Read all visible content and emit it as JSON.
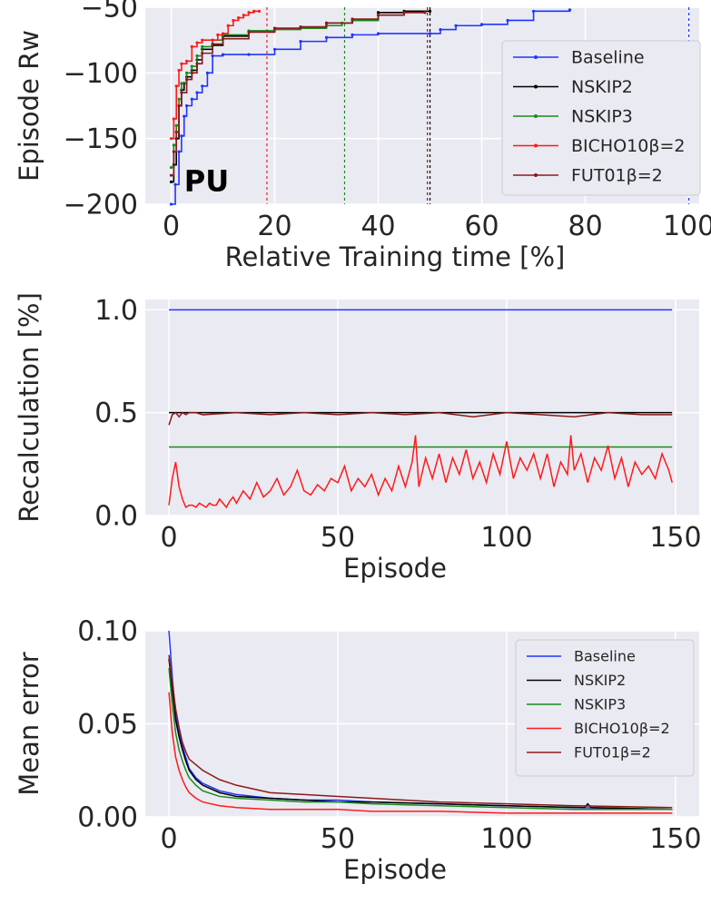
{
  "chart_data": [
    {
      "type": "line",
      "ylabel": "Episode Rw",
      "xlabel": "Relative Training time [%]",
      "annotation": "PU",
      "xlim": [
        -5,
        102
      ],
      "ylim": [
        -200,
        -50
      ],
      "xticks": [
        0,
        20,
        40,
        60,
        80,
        100
      ],
      "yticks": [
        -200,
        -150,
        -100,
        -50
      ],
      "grid": true,
      "legend_position": "right",
      "series": [
        {
          "name": "Baseline",
          "color": "#2035ff",
          "x": [
            0,
            0.8,
            1.5,
            2,
            2.5,
            3,
            4,
            5,
            6,
            7,
            8,
            10,
            15,
            20,
            25,
            30,
            35,
            40,
            50,
            52,
            55,
            60,
            65,
            70,
            77
          ],
          "y": [
            -200,
            -185,
            -160,
            -148,
            -133,
            -125,
            -120,
            -115,
            -110,
            -100,
            -87,
            -86,
            -86,
            -82,
            -76,
            -73,
            -71,
            -70,
            -70,
            -67,
            -64,
            -63,
            -60,
            -53,
            -52
          ],
          "end_marker_x": 100
        },
        {
          "name": "NSKIP2",
          "color": "#000000",
          "x": [
            0,
            0.5,
            1,
            1.5,
            2,
            2.5,
            3,
            4,
            5,
            6,
            8,
            10,
            15,
            20,
            25,
            30,
            35,
            40,
            45,
            50
          ],
          "y": [
            -183,
            -170,
            -150,
            -125,
            -113,
            -108,
            -103,
            -98,
            -90,
            -82,
            -79,
            -72,
            -68,
            -66,
            -65,
            -62,
            -60,
            -54,
            -53,
            -53
          ],
          "end_marker_x": 50
        },
        {
          "name": "NSKIP3",
          "color": "#1a8a1a",
          "x": [
            0,
            0.5,
            1,
            1.5,
            2,
            3,
            4,
            5,
            6,
            8,
            10,
            15,
            20,
            25,
            30,
            33,
            35,
            40,
            45,
            49
          ],
          "y": [
            -172,
            -155,
            -140,
            -120,
            -108,
            -100,
            -95,
            -87,
            -80,
            -75,
            -71,
            -68,
            -67,
            -66,
            -64,
            -62,
            -60,
            -56,
            -54,
            -54
          ],
          "end_marker_x": 33.5
        },
        {
          "name": "BICHO10β=2",
          "color": "#ff1a1a",
          "x": [
            0,
            0.5,
            1,
            1.5,
            2,
            3,
            4,
            5,
            6,
            8,
            9,
            10,
            11,
            12,
            13,
            14,
            15,
            16,
            17
          ],
          "y": [
            -150,
            -135,
            -110,
            -98,
            -93,
            -91,
            -80,
            -77,
            -75,
            -75,
            -71,
            -70,
            -64,
            -60,
            -58,
            -56,
            -54,
            -53,
            -53
          ],
          "end_marker_x": 18.5
        },
        {
          "name": "FUT01β=2",
          "color": "#8b1a1a",
          "x": [
            0,
            0.5,
            1,
            1.5,
            2,
            3,
            4,
            5,
            6,
            8,
            10,
            15,
            20,
            25,
            30,
            35,
            40,
            45,
            49
          ],
          "y": [
            -178,
            -160,
            -145,
            -125,
            -115,
            -105,
            -100,
            -93,
            -85,
            -78,
            -74,
            -69,
            -66,
            -65,
            -62,
            -59,
            -56,
            -54,
            -54
          ],
          "end_marker_x": 49.5
        }
      ]
    },
    {
      "type": "line",
      "ylabel": "Recalculation [%]",
      "xlabel": "Episode",
      "xlim": [
        -7,
        157
      ],
      "ylim": [
        0,
        1.05
      ],
      "xticks": [
        0,
        50,
        100,
        150
      ],
      "yticks": [
        0.0,
        0.5,
        1.0
      ],
      "ytick_labels": [
        "0.0",
        "0.5",
        "1.0"
      ],
      "grid": true,
      "series": [
        {
          "name": "Baseline",
          "color": "#2035ff",
          "constant": 1.0
        },
        {
          "name": "NSKIP2",
          "color": "#000000",
          "constant": 0.5
        },
        {
          "name": "NSKIP3",
          "color": "#1a8a1a",
          "constant": 0.333
        },
        {
          "name": "FUT01β=2",
          "color": "#8b1a1a",
          "x": [
            0,
            1,
            2,
            3,
            4,
            5,
            6,
            8,
            10,
            20,
            30,
            40,
            50,
            60,
            70,
            80,
            90,
            100,
            110,
            120,
            130,
            140,
            149
          ],
          "y": [
            0.44,
            0.49,
            0.5,
            0.48,
            0.5,
            0.49,
            0.5,
            0.5,
            0.49,
            0.5,
            0.49,
            0.5,
            0.49,
            0.5,
            0.49,
            0.5,
            0.48,
            0.5,
            0.49,
            0.48,
            0.5,
            0.49,
            0.49
          ]
        },
        {
          "name": "BICHO10β=2",
          "color": "#ff1a1a",
          "x": [
            0,
            1,
            2,
            3,
            4,
            5,
            6,
            7,
            8,
            9,
            10,
            11,
            12,
            13,
            14,
            15,
            16,
            17,
            18,
            19,
            20,
            22,
            24,
            26,
            28,
            30,
            32,
            34,
            36,
            38,
            40,
            42,
            44,
            46,
            48,
            50,
            52,
            54,
            56,
            58,
            60,
            62,
            64,
            66,
            68,
            70,
            72,
            73,
            74,
            76,
            78,
            80,
            82,
            84,
            86,
            88,
            90,
            92,
            94,
            96,
            98,
            100,
            102,
            104,
            106,
            108,
            110,
            112,
            114,
            116,
            118,
            119,
            120,
            122,
            124,
            126,
            128,
            130,
            132,
            134,
            136,
            138,
            140,
            142,
            144,
            146,
            148,
            149
          ],
          "y": [
            0.05,
            0.18,
            0.26,
            0.14,
            0.08,
            0.04,
            0.05,
            0.05,
            0.04,
            0.06,
            0.05,
            0.04,
            0.06,
            0.05,
            0.05,
            0.08,
            0.06,
            0.04,
            0.07,
            0.09,
            0.06,
            0.12,
            0.08,
            0.16,
            0.09,
            0.12,
            0.18,
            0.1,
            0.14,
            0.22,
            0.12,
            0.1,
            0.15,
            0.12,
            0.18,
            0.16,
            0.24,
            0.12,
            0.18,
            0.14,
            0.2,
            0.1,
            0.18,
            0.12,
            0.24,
            0.14,
            0.26,
            0.39,
            0.14,
            0.28,
            0.18,
            0.3,
            0.16,
            0.28,
            0.2,
            0.32,
            0.18,
            0.26,
            0.16,
            0.3,
            0.2,
            0.36,
            0.18,
            0.28,
            0.22,
            0.3,
            0.18,
            0.3,
            0.14,
            0.26,
            0.2,
            0.39,
            0.22,
            0.3,
            0.16,
            0.28,
            0.22,
            0.34,
            0.18,
            0.28,
            0.14,
            0.26,
            0.2,
            0.24,
            0.18,
            0.3,
            0.22,
            0.16
          ]
        }
      ]
    },
    {
      "type": "line",
      "ylabel": "Mean error",
      "xlabel": "Episode",
      "xlim": [
        -7,
        157
      ],
      "ylim": [
        0,
        0.1
      ],
      "xticks": [
        0,
        50,
        100,
        150
      ],
      "yticks": [
        0.0,
        0.05,
        0.1
      ],
      "ytick_labels": [
        "0.00",
        "0.05",
        "0.10"
      ],
      "grid": true,
      "legend_position": "top-right",
      "series": [
        {
          "name": "Baseline",
          "color": "#2035ff",
          "x": [
            0,
            1,
            2,
            3,
            4,
            5,
            6,
            8,
            10,
            15,
            20,
            30,
            40,
            50,
            60,
            80,
            100,
            120,
            149
          ],
          "y": [
            0.1,
            0.075,
            0.055,
            0.045,
            0.038,
            0.032,
            0.026,
            0.021,
            0.018,
            0.014,
            0.012,
            0.01,
            0.009,
            0.009,
            0.008,
            0.007,
            0.006,
            0.005,
            0.004
          ]
        },
        {
          "name": "NSKIP2",
          "color": "#000000",
          "x": [
            0,
            1,
            2,
            3,
            4,
            5,
            6,
            8,
            10,
            15,
            20,
            30,
            40,
            50,
            60,
            80,
            100,
            123,
            124,
            125,
            149
          ],
          "y": [
            0.085,
            0.068,
            0.052,
            0.043,
            0.036,
            0.03,
            0.025,
            0.02,
            0.017,
            0.013,
            0.011,
            0.01,
            0.009,
            0.008,
            0.008,
            0.007,
            0.006,
            0.005,
            0.007,
            0.005,
            0.004
          ]
        },
        {
          "name": "NSKIP3",
          "color": "#1a8a1a",
          "x": [
            0,
            1,
            2,
            3,
            4,
            5,
            6,
            8,
            10,
            15,
            20,
            30,
            40,
            50,
            60,
            80,
            100,
            120,
            149
          ],
          "y": [
            0.08,
            0.06,
            0.045,
            0.036,
            0.03,
            0.025,
            0.021,
            0.017,
            0.014,
            0.011,
            0.01,
            0.009,
            0.008,
            0.008,
            0.007,
            0.006,
            0.005,
            0.004,
            0.004
          ]
        },
        {
          "name": "BICHO10β=2",
          "color": "#ff1a1a",
          "x": [
            0,
            1,
            2,
            3,
            4,
            5,
            6,
            8,
            10,
            15,
            20,
            30,
            40,
            50,
            60,
            80,
            100,
            120,
            149
          ],
          "y": [
            0.067,
            0.045,
            0.032,
            0.025,
            0.02,
            0.016,
            0.013,
            0.01,
            0.008,
            0.006,
            0.005,
            0.004,
            0.004,
            0.004,
            0.003,
            0.003,
            0.002,
            0.002,
            0.002
          ]
        },
        {
          "name": "FUT01β=2",
          "color": "#8b1a1a",
          "x": [
            0,
            1,
            2,
            3,
            4,
            5,
            6,
            8,
            10,
            15,
            20,
            30,
            40,
            50,
            60,
            80,
            100,
            120,
            149
          ],
          "y": [
            0.087,
            0.072,
            0.058,
            0.048,
            0.04,
            0.035,
            0.031,
            0.028,
            0.025,
            0.02,
            0.017,
            0.013,
            0.012,
            0.011,
            0.01,
            0.008,
            0.007,
            0.006,
            0.005
          ]
        }
      ]
    }
  ]
}
